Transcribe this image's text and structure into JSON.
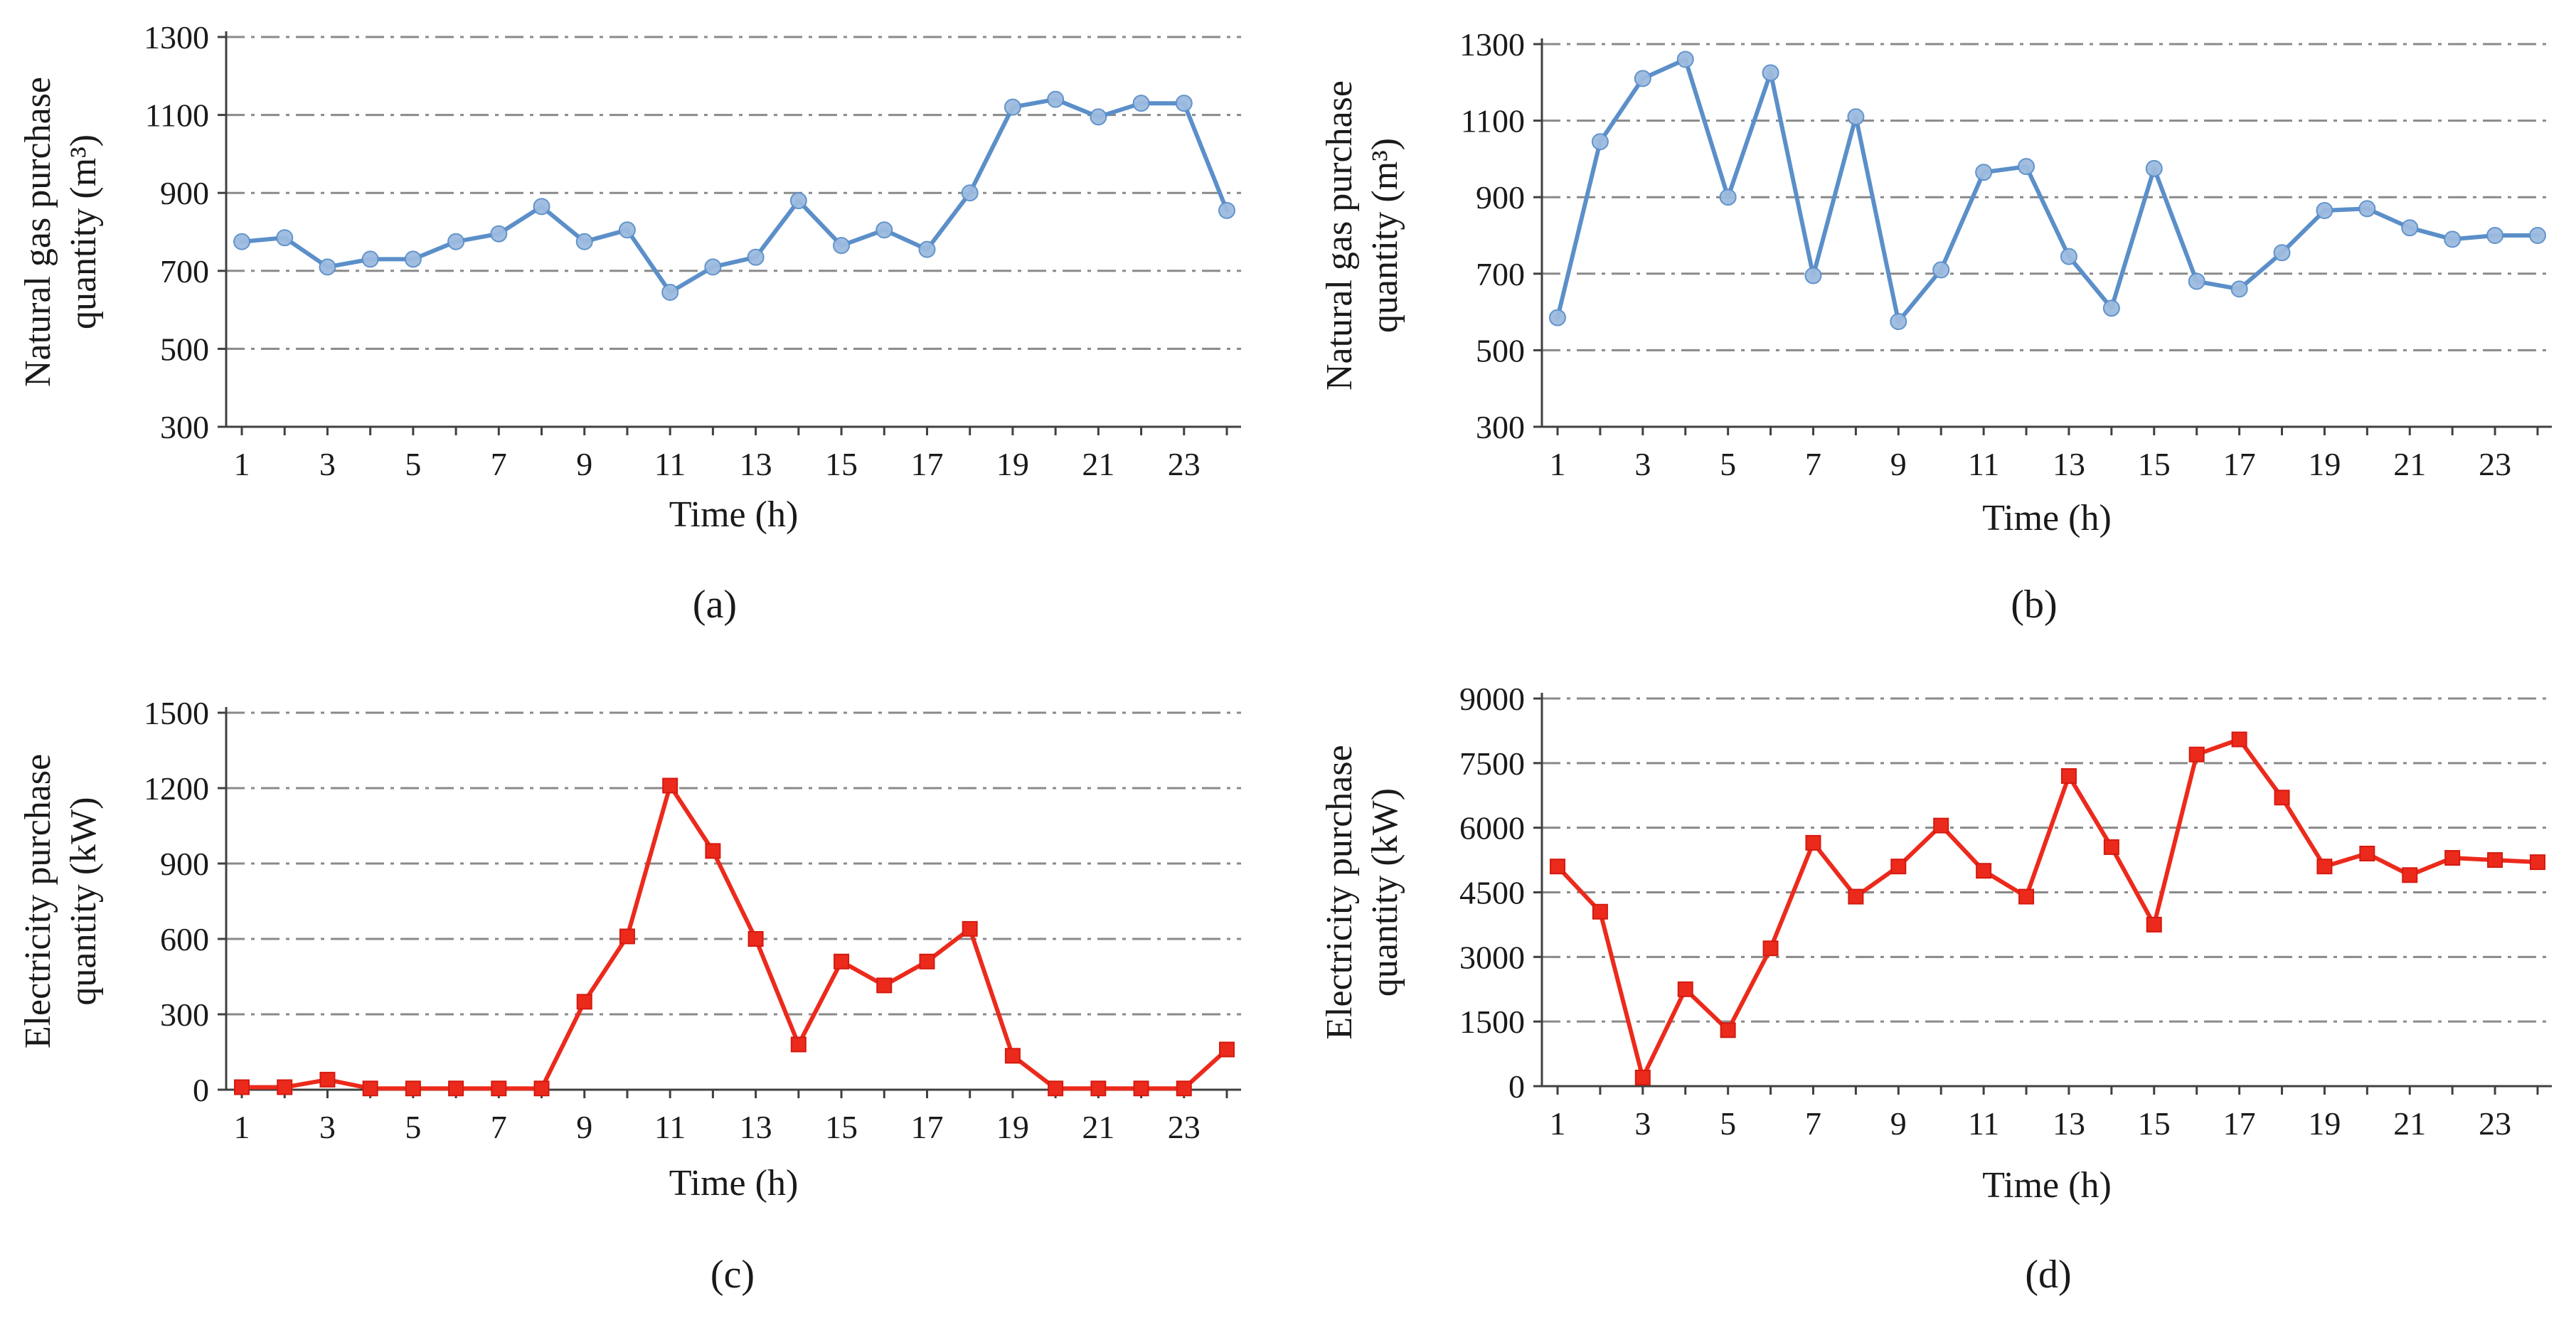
{
  "figure": {
    "panels": [
      "(a)",
      "(b)",
      "(c)",
      "(d)"
    ]
  },
  "colors": {
    "gas": "#5b8fc9",
    "gas_marker": "#9dbbe0",
    "electricity": "#ec2a1c",
    "grid": "#8a8a8a",
    "axis": "#404040"
  },
  "chart_data": [
    {
      "type": "line",
      "panel_label": "(a)",
      "series_color": "gas",
      "marker": "circle",
      "xlabel": "Time (h)",
      "ylabel_lines": [
        "Natural gas purchase",
        "quantity (m³)"
      ],
      "ylim": [
        300,
        1300
      ],
      "yticks": [
        300,
        500,
        700,
        900,
        1100,
        1300
      ],
      "xlim": [
        1,
        24
      ],
      "xticks": [
        1,
        3,
        5,
        7,
        9,
        11,
        13,
        15,
        17,
        19,
        21,
        23
      ],
      "x": [
        1,
        2,
        3,
        4,
        5,
        6,
        7,
        8,
        9,
        10,
        11,
        12,
        13,
        14,
        15,
        16,
        17,
        18,
        19,
        20,
        21,
        22,
        23,
        24
      ],
      "values": [
        775,
        785,
        710,
        730,
        730,
        775,
        795,
        865,
        775,
        805,
        645,
        710,
        735,
        880,
        765,
        805,
        755,
        900,
        1120,
        1140,
        1095,
        1130,
        1130,
        855
      ]
    },
    {
      "type": "line",
      "panel_label": "(b)",
      "series_color": "gas",
      "marker": "circle",
      "xlabel": "Time (h)",
      "ylabel_lines": [
        "Natural gas purchase",
        "quantity (m³)"
      ],
      "ylim": [
        300,
        1300
      ],
      "yticks": [
        300,
        500,
        700,
        900,
        1100,
        1300
      ],
      "xlim": [
        1,
        24
      ],
      "xticks": [
        1,
        3,
        5,
        7,
        9,
        11,
        13,
        15,
        17,
        19,
        21,
        23
      ],
      "x": [
        1,
        2,
        3,
        4,
        5,
        6,
        7,
        8,
        9,
        10,
        11,
        12,
        13,
        14,
        15,
        16,
        17,
        18,
        19,
        20,
        21,
        22,
        23,
        24
      ],
      "values": [
        585,
        1045,
        1210,
        1260,
        900,
        1225,
        695,
        1110,
        575,
        710,
        965,
        980,
        745,
        610,
        975,
        680,
        660,
        755,
        865,
        870,
        820,
        790,
        800,
        800
      ]
    },
    {
      "type": "line",
      "panel_label": "(c)",
      "series_color": "electricity",
      "marker": "square",
      "xlabel": "Time (h)",
      "ylabel_lines": [
        "Electricity purchase",
        "quantity (kW)"
      ],
      "ylim": [
        0,
        1500
      ],
      "yticks": [
        0,
        300,
        600,
        900,
        1200,
        1500
      ],
      "xlim": [
        1,
        24
      ],
      "xticks": [
        1,
        3,
        5,
        7,
        9,
        11,
        13,
        15,
        17,
        19,
        21,
        23
      ],
      "x": [
        1,
        2,
        3,
        4,
        5,
        6,
        7,
        8,
        9,
        10,
        11,
        12,
        13,
        14,
        15,
        16,
        17,
        18,
        19,
        20,
        21,
        22,
        23,
        24
      ],
      "values": [
        10,
        10,
        40,
        5,
        5,
        5,
        5,
        5,
        350,
        610,
        1210,
        950,
        600,
        180,
        510,
        415,
        510,
        640,
        135,
        5,
        5,
        5,
        5,
        160
      ]
    },
    {
      "type": "line",
      "panel_label": "(d)",
      "series_color": "electricity",
      "marker": "square",
      "xlabel": "Time (h)",
      "ylabel_lines": [
        "Electricity purchase",
        "quantity (kW)"
      ],
      "ylim": [
        0,
        9000
      ],
      "yticks": [
        0,
        1500,
        3000,
        4500,
        6000,
        7500,
        9000
      ],
      "xlim": [
        1,
        24
      ],
      "xticks": [
        1,
        3,
        5,
        7,
        9,
        11,
        13,
        15,
        17,
        19,
        21,
        23
      ],
      "x": [
        1,
        2,
        3,
        4,
        5,
        6,
        7,
        8,
        9,
        10,
        11,
        12,
        13,
        14,
        15,
        16,
        17,
        18,
        19,
        20,
        21,
        22,
        23,
        24
      ],
      "values": [
        5100,
        4050,
        200,
        2250,
        1300,
        3200,
        5650,
        4400,
        5100,
        6050,
        5000,
        4400,
        7200,
        5550,
        3750,
        7700,
        8050,
        6700,
        5100,
        5400,
        4900,
        5300,
        5250,
        5200
      ]
    }
  ]
}
